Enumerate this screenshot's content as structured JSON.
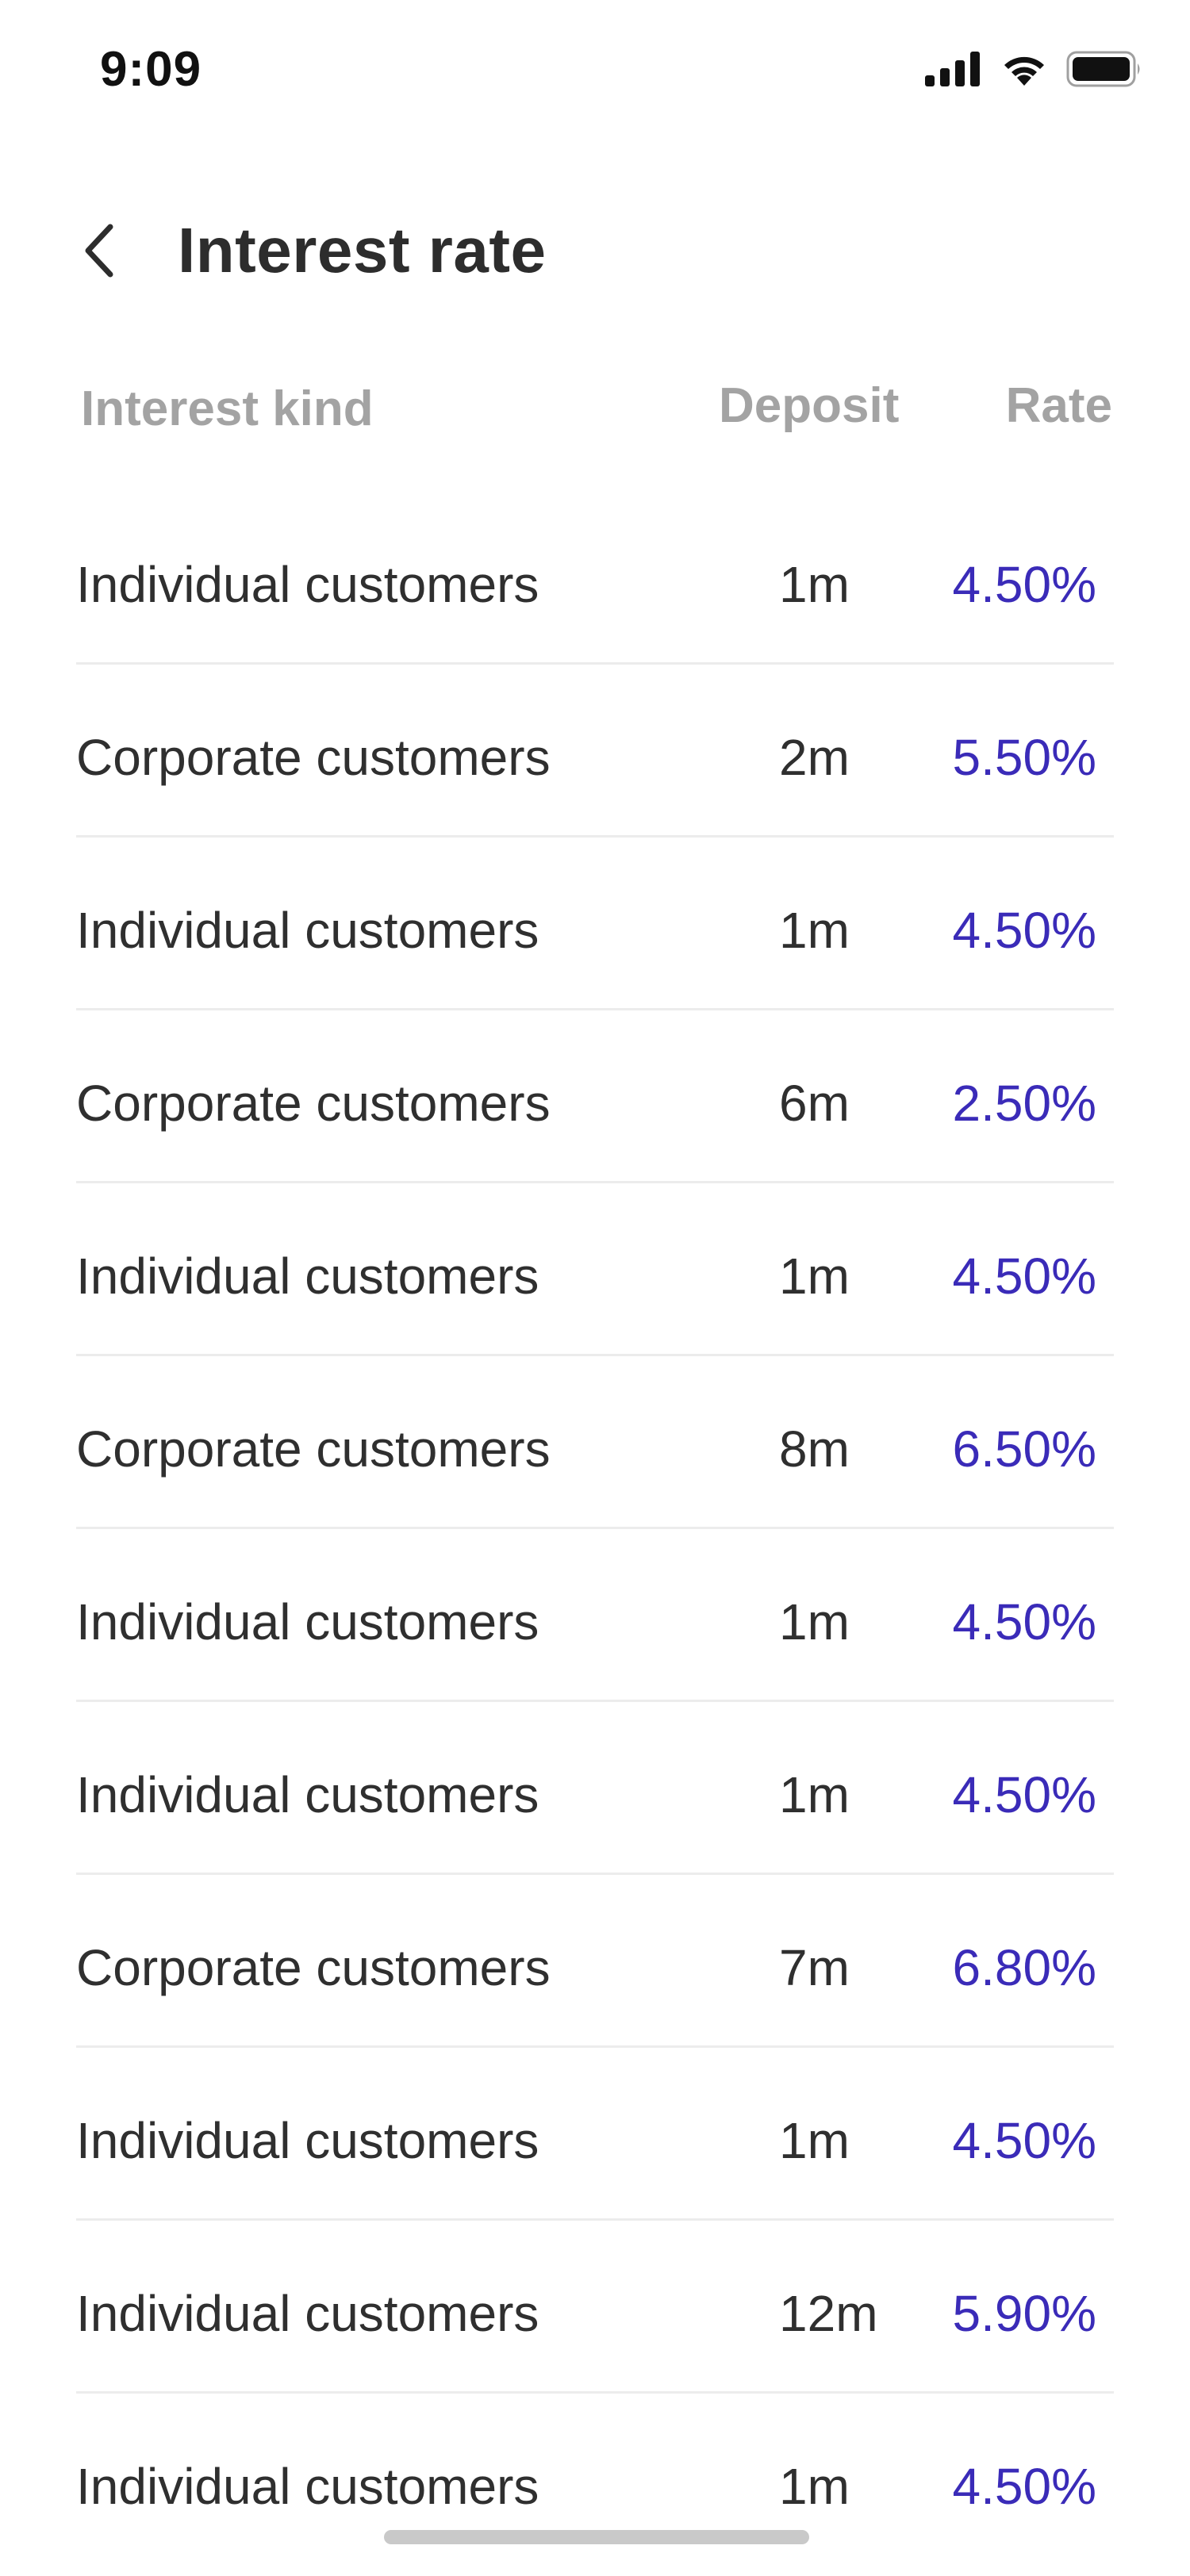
{
  "status_bar": {
    "time": "9:09",
    "icons": [
      "cellular-signal-icon",
      "wifi-icon",
      "battery-icon"
    ]
  },
  "header": {
    "back_icon": "chevron-left-icon",
    "title": "Interest rate"
  },
  "columns": {
    "kind": "Interest kind",
    "deposit": "Deposit",
    "rate": "Rate"
  },
  "colors": {
    "rate_accent": "#3a2bb8",
    "header_text": "#a3a3a3",
    "body_text": "#2f2f2f"
  },
  "rows": [
    {
      "kind": "Individual customers",
      "deposit": "1m",
      "rate": "4.50%"
    },
    {
      "kind": "Corporate customers",
      "deposit": "2m",
      "rate": "5.50%"
    },
    {
      "kind": "Individual customers",
      "deposit": "1m",
      "rate": "4.50%"
    },
    {
      "kind": "Corporate customers",
      "deposit": "6m",
      "rate": "2.50%"
    },
    {
      "kind": "Individual customers",
      "deposit": "1m",
      "rate": "4.50%"
    },
    {
      "kind": "Corporate customers",
      "deposit": "8m",
      "rate": "6.50%"
    },
    {
      "kind": "Individual customers",
      "deposit": "1m",
      "rate": "4.50%"
    },
    {
      "kind": "Individual customers",
      "deposit": "1m",
      "rate": "4.50%"
    },
    {
      "kind": "Corporate customers",
      "deposit": "7m",
      "rate": "6.80%"
    },
    {
      "kind": "Individual customers",
      "deposit": "1m",
      "rate": "4.50%"
    },
    {
      "kind": "Individual customers",
      "deposit": "12m",
      "rate": "5.90%"
    },
    {
      "kind": "Individual customers",
      "deposit": "1m",
      "rate": "4.50%"
    }
  ]
}
